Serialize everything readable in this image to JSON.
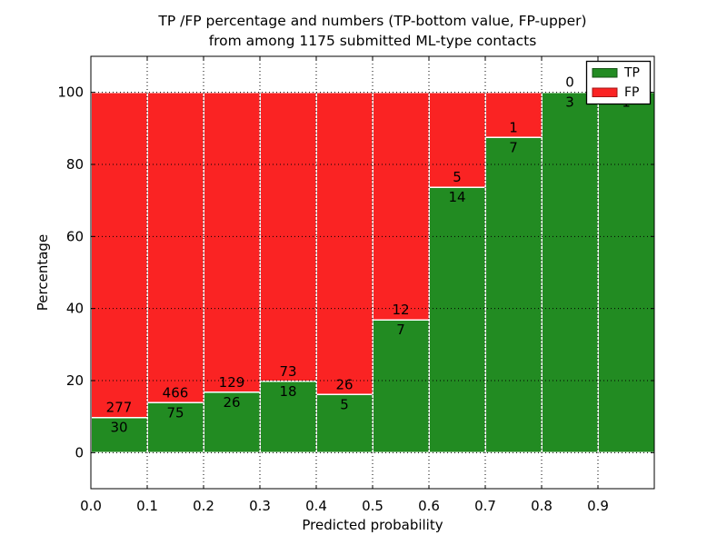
{
  "chart_data": {
    "type": "bar",
    "stacked": true,
    "orientation": "vertical",
    "title_lines": [
      "TP /FP percentage and numbers (TP-bottom value, FP-upper)",
      "from among 1175 submitted ML-type contacts"
    ],
    "xlabel": "Predicted probability",
    "ylabel": "Percentage",
    "total_submitted_contacts": 1175,
    "bin_edges": [
      0.0,
      0.1,
      0.2,
      0.3,
      0.4,
      0.5,
      0.6,
      0.7,
      0.8,
      0.9,
      1.0
    ],
    "series": [
      {
        "name": "TP",
        "color": "#228b22",
        "counts": [
          30,
          75,
          26,
          18,
          5,
          7,
          14,
          7,
          3,
          1
        ]
      },
      {
        "name": "FP",
        "color": "#fa2323",
        "counts": [
          277,
          466,
          129,
          73,
          26,
          12,
          5,
          1,
          0,
          0
        ]
      }
    ],
    "tp_percent_of_bin": [
      9.77,
      13.86,
      16.77,
      19.78,
      16.13,
      36.84,
      73.68,
      87.5,
      100.0,
      100.0
    ],
    "x_tick_labels": [
      "0.0",
      "0.1",
      "0.2",
      "0.3",
      "0.4",
      "0.5",
      "0.6",
      "0.7",
      "0.8",
      "0.9"
    ],
    "y_tick_values": [
      0,
      20,
      40,
      60,
      80,
      100
    ],
    "xlim": [
      0.0,
      1.0
    ],
    "ylim": [
      -10,
      110
    ],
    "grid": {
      "visible": true,
      "style": "dotted",
      "color": "#000000"
    },
    "bar_edge_color": "#ffffff",
    "plot_background": "#ffffff",
    "legend": {
      "position": "upper-right",
      "entries": [
        {
          "label": "TP",
          "color": "#228b22",
          "edge": "#145214"
        },
        {
          "label": "FP",
          "color": "#fa2323",
          "edge": "#a01515"
        }
      ]
    }
  }
}
